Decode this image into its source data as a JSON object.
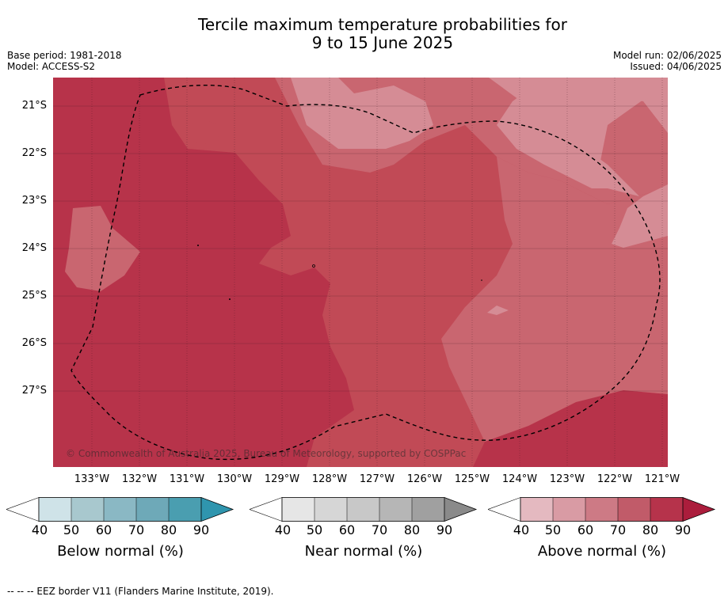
{
  "title": {
    "line1": "Tercile maximum temperature probabilities for",
    "line2": "9 to 15 June 2025"
  },
  "meta": {
    "base_period": "Base period: 1981-2018",
    "model": "Model: ACCESS-S2",
    "model_run": "Model run: 02/06/2025",
    "issued": "Issued: 04/06/2025"
  },
  "map": {
    "latitude_labels": [
      "21°S",
      "22°S",
      "23°S",
      "24°S",
      "25°S",
      "26°S",
      "27°S"
    ],
    "longitude_labels": [
      "133°W",
      "132°W",
      "131°W",
      "130°W",
      "129°W",
      "128°W",
      "127°W",
      "126°W",
      "125°W",
      "124°W",
      "123°W",
      "122°W",
      "121°W"
    ],
    "copyright": "© Commonwealth of Australia 2025, Bureau of Meteorology, supported by COSPPac",
    "colors": {
      "above_60_70": "#c96670",
      "above_70_80": "#c14a56",
      "above_80_90": "#b7334a",
      "above_90": "#ad1d3c",
      "above_50_60": "#d58c95",
      "border": "#000000"
    }
  },
  "colorbars": [
    {
      "label": "Below normal (%)",
      "ticks": [
        "40",
        "50",
        "60",
        "70",
        "80",
        "90"
      ],
      "colors": [
        "#cfe3e8",
        "#a8c8ce",
        "#8ab8c4",
        "#6ea9b8",
        "#4a9eb0",
        "#2f95ae"
      ]
    },
    {
      "label": "Near normal (%)",
      "ticks": [
        "40",
        "50",
        "60",
        "70",
        "80",
        "90"
      ],
      "colors": [
        "#e6e6e6",
        "#d6d6d6",
        "#c8c8c8",
        "#b6b6b6",
        "#a0a0a0",
        "#8a8a8a"
      ]
    },
    {
      "label": "Above normal (%)",
      "ticks": [
        "40",
        "50",
        "60",
        "70",
        "80",
        "90"
      ],
      "colors": [
        "#e4b9c0",
        "#d99ba4",
        "#cd7a85",
        "#c15b69",
        "#b6334b",
        "#ab1d3c"
      ]
    }
  ],
  "footnote": "--  --  -- EEZ border V11 (Flanders Marine Institute, 2019)."
}
